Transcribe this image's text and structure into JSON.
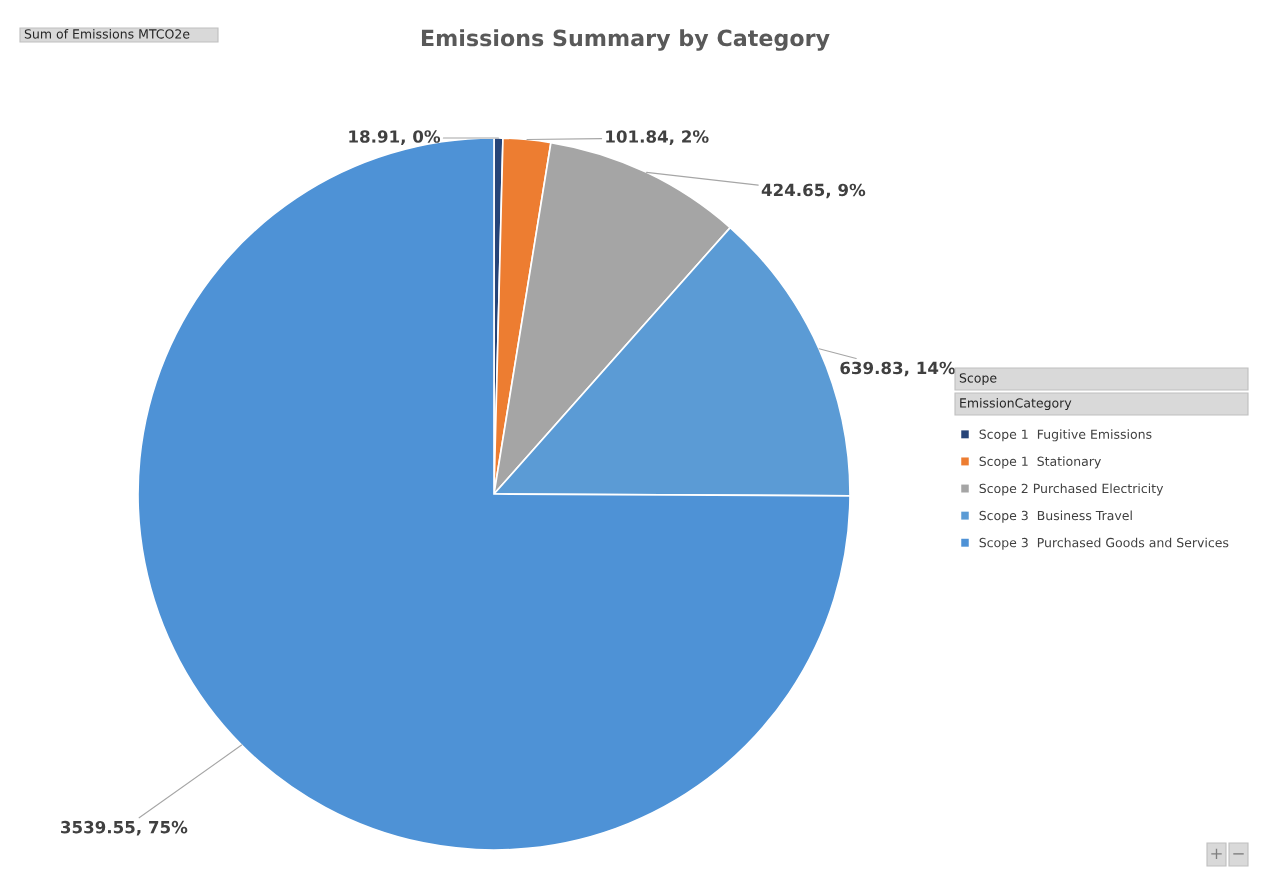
{
  "chart_data": {
    "type": "pie",
    "title": "Emissions Summary by Category",
    "categories": [
      "Scope 1  Fugitive Emissions",
      "Scope 1  Stationary",
      "Scope 2 Purchased Electricity",
      "Scope 3  Business Travel",
      "Scope 3  Purchased Goods and Services"
    ],
    "values": [
      18.91,
      101.84,
      424.65,
      639.83,
      3539.55
    ],
    "colors": [
      "#264478",
      "#ed7d31",
      "#a5a5a5",
      "#5b9bd5",
      "#4e92d6"
    ],
    "value_labels": [
      "18.91, 0%",
      "101.84, 2%",
      "424.65, 9%",
      "639.83, 14%",
      "3539.55, 75%"
    ],
    "legend": "right",
    "annotations": [
      "Sum of Emissions MTCO2e",
      "Scope",
      "EmissionCategory",
      "+",
      "−"
    ]
  }
}
